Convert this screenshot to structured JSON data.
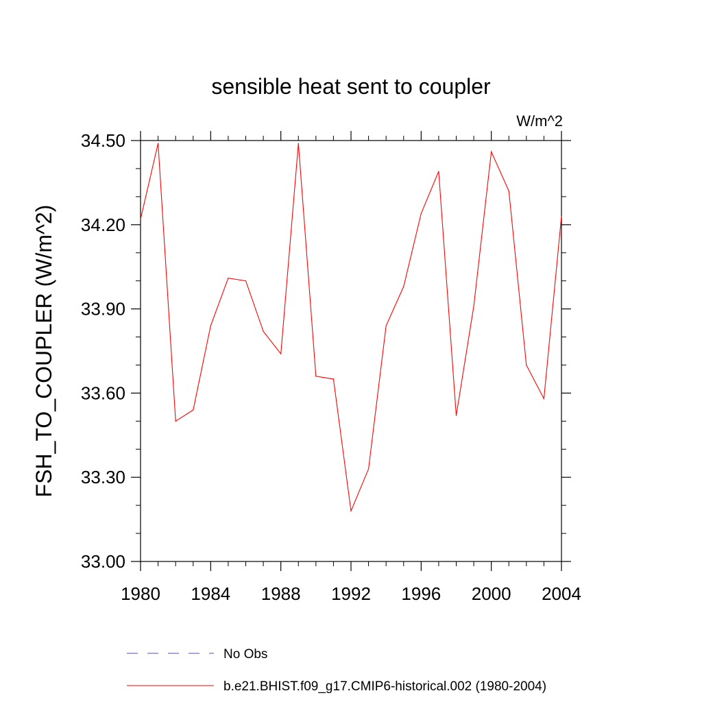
{
  "chart_data": {
    "type": "line",
    "title": "sensible heat sent to coupler",
    "units_label": "W/m^2",
    "ylabel": "FSH_TO_COUPLER  (W/m^2)",
    "xlabel": "",
    "xlim": [
      1980,
      2004
    ],
    "ylim": [
      33.0,
      34.5
    ],
    "x_ticks": [
      "1980",
      "1984",
      "1988",
      "1992",
      "1996",
      "2000",
      "2004"
    ],
    "y_ticks": [
      "33.00",
      "33.30",
      "33.60",
      "33.90",
      "34.20",
      "34.50"
    ],
    "grid": false,
    "legend_position": "bottom",
    "series": [
      {
        "name": "b.e21.BHIST.f09_g17.CMIP6-historical.002 (1980-2004)",
        "color": "#ff0000",
        "style": "solid",
        "x": [
          1980,
          1981,
          1982,
          1983,
          1984,
          1985,
          1986,
          1987,
          1988,
          1989,
          1990,
          1991,
          1992,
          1993,
          1994,
          1995,
          1996,
          1997,
          1998,
          1999,
          2000,
          2001,
          2002,
          2003,
          2004
        ],
        "values": [
          34.22,
          34.49,
          33.5,
          33.54,
          33.84,
          34.01,
          34.0,
          33.82,
          33.74,
          34.49,
          33.66,
          33.65,
          33.18,
          33.33,
          33.84,
          33.98,
          34.24,
          34.39,
          33.52,
          33.91,
          34.46,
          34.32,
          33.7,
          33.58,
          34.23
        ]
      }
    ],
    "legend": [
      {
        "label": "No Obs",
        "color": "#4d4db3",
        "style": "dashed"
      },
      {
        "label": "b.e21.BHIST.f09_g17.CMIP6-historical.002 (1980-2004)",
        "color": "#ff0000",
        "style": "solid"
      }
    ]
  }
}
